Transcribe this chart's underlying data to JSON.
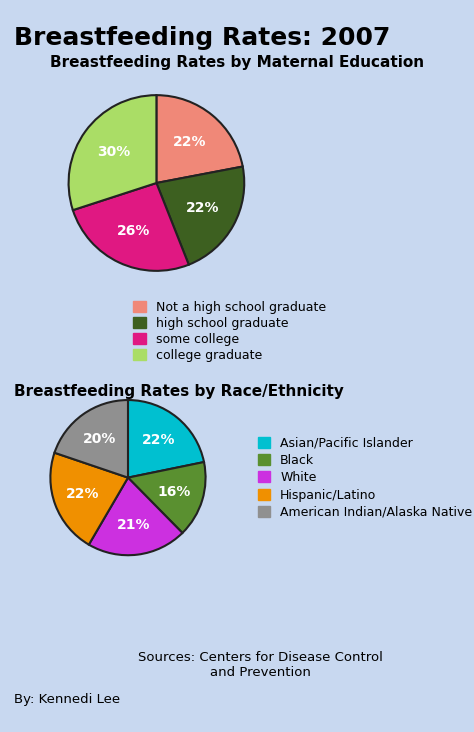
{
  "title": "Breastfeeding Rates: 2007",
  "bg_color": "#c8d8f0",
  "pie1_title": "Breastfeeding Rates by Maternal Education",
  "pie1_values": [
    22,
    22,
    26,
    30
  ],
  "pie1_labels": [
    "22%",
    "22%",
    "26%",
    "30%"
  ],
  "pie1_colors": [
    "#f08878",
    "#3d6020",
    "#e01882",
    "#aadd66"
  ],
  "pie1_legend_colors": [
    "#f08878",
    "#3d6020",
    "#e01882",
    "#aadd66"
  ],
  "pie1_legend_labels": [
    "Not a high school graduate",
    "high school graduate",
    "some college",
    "college graduate"
  ],
  "pie1_startangle": 90,
  "pie2_title": "Breastfeeding Rates by Race/Ethnicity",
  "pie2_values": [
    22,
    16,
    21,
    22,
    20
  ],
  "pie2_labels": [
    "22%",
    "16%",
    "21%",
    "22%",
    "20%"
  ],
  "pie2_colors": [
    "#00c0d0",
    "#5a9030",
    "#cc30e0",
    "#f09000",
    "#909090"
  ],
  "pie2_legend_colors": [
    "#00c0d0",
    "#5a9030",
    "#cc30e0",
    "#f09000",
    "#909090"
  ],
  "pie2_legend_labels": [
    "Asian/Pacific Islander",
    "Black",
    "White",
    "Hispanic/Latino",
    "American Indian/Alaska Native"
  ],
  "pie2_startangle": 90,
  "source_text": "Sources: Centers for Disease Control\nand Prevention",
  "author_text": "By: Kennedi Lee",
  "label_color": "#ffffff",
  "title_fontsize": 18,
  "subtitle_fontsize": 11,
  "label_fontsize": 10,
  "legend_fontsize": 9,
  "edge_color": "#222222",
  "edge_width": 1.5
}
